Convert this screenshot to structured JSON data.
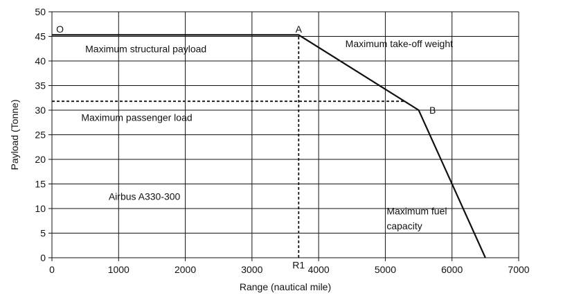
{
  "chart_data": {
    "type": "line",
    "xlabel": "Range (nautical mile)",
    "ylabel": "Payload (Tonne)",
    "xlim": [
      0,
      7000
    ],
    "ylim": [
      0,
      50
    ],
    "x_ticks": [
      0,
      1000,
      2000,
      3000,
      4000,
      5000,
      6000,
      7000
    ],
    "y_ticks": [
      0,
      5,
      10,
      15,
      20,
      25,
      30,
      35,
      40,
      45,
      50
    ],
    "grid": true,
    "series": [
      {
        "values": [
          [
            0,
            45.3
          ],
          [
            3700,
            45.3
          ],
          [
            5500,
            30
          ],
          [
            6500,
            0
          ]
        ],
        "style": "solid"
      },
      {
        "values": [
          [
            0,
            31.8
          ],
          [
            5300,
            31.8
          ]
        ],
        "style": "dashed"
      },
      {
        "values": [
          [
            3700,
            0
          ],
          [
            3700,
            45.3
          ]
        ],
        "style": "dashed"
      }
    ],
    "point_labels": [
      {
        "text": "O",
        "x": 120,
        "y": 46.5
      },
      {
        "text": "A",
        "x": 3700,
        "y": 46.5
      },
      {
        "text": "B",
        "x": 5660,
        "y": 30
      },
      {
        "text": "R1",
        "x": 3700,
        "y": -1.5
      }
    ],
    "annotations": [
      {
        "text": "Maximum structural payload",
        "x": 500,
        "y": 42.5
      },
      {
        "text": "Maximum take-off weight",
        "x": 4400,
        "y": 43.5
      },
      {
        "text": "Maximum passenger load",
        "x": 440,
        "y": 28.5
      },
      {
        "text": "Airbus A330-300",
        "x": 850,
        "y": 12.5
      },
      {
        "text": "Maximum fuel",
        "x": 5020,
        "y": 9.5
      },
      {
        "text": "capacity",
        "x": 5020,
        "y": 6.5
      }
    ]
  }
}
